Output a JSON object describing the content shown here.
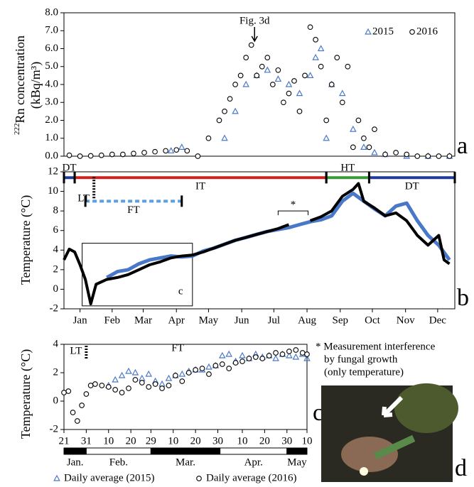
{
  "chart_data": [
    {
      "type": "scatter",
      "y_label_sup": "222",
      "y_label": "Rn concentration",
      "y_label_unit": "(kBq/m³)",
      "xlim": [
        0,
        365
      ],
      "ylim": [
        0,
        8
      ],
      "yticks": [
        {
          "value": 0,
          "label": "0.0"
        },
        {
          "value": 1,
          "label": "1.0"
        },
        {
          "value": 2,
          "label": "2.0"
        },
        {
          "value": 3,
          "label": "3.0"
        },
        {
          "value": 4,
          "label": "4.0"
        },
        {
          "value": 5,
          "label": "5.0"
        },
        {
          "value": 6,
          "label": "6.0"
        },
        {
          "value": 7,
          "label": "7.0"
        },
        {
          "value": 8,
          "label": "8.0"
        }
      ],
      "legend": "upper right",
      "series": [
        {
          "name": "2015",
          "color": "#4a78c8",
          "marker": "triangle",
          "x": [
            100,
            110,
            150,
            160,
            170,
            180,
            190,
            200,
            210,
            220,
            230,
            235,
            240,
            245,
            250,
            260,
            270,
            280,
            290,
            300,
            320,
            340,
            360
          ],
          "values": [
            0.3,
            0.5,
            1.0,
            2.5,
            4.0,
            4.5,
            4.8,
            4.3,
            4.0,
            3.5,
            4.5,
            5.5,
            6.0,
            1.0,
            4.0,
            3.5,
            1.5,
            0.5,
            0.2,
            0.1,
            0.0,
            0.0,
            0.0
          ]
        },
        {
          "name": "2016",
          "color": "#000000",
          "marker": "circle",
          "x": [
            5,
            15,
            25,
            35,
            45,
            55,
            65,
            75,
            85,
            95,
            105,
            115,
            125,
            135,
            145,
            150,
            155,
            160,
            165,
            170,
            175,
            180,
            185,
            190,
            195,
            200,
            205,
            210,
            215,
            220,
            225,
            230,
            235,
            240,
            245,
            250,
            255,
            260,
            265,
            270,
            275,
            280,
            285,
            290,
            300,
            310,
            320,
            330,
            340,
            350,
            360
          ],
          "values": [
            0.05,
            0.0,
            0.02,
            0.05,
            0.1,
            0.1,
            0.15,
            0.2,
            0.25,
            0.3,
            0.35,
            0.3,
            0.0,
            1.0,
            2.0,
            2.5,
            3.2,
            4.0,
            4.5,
            5.5,
            6.2,
            4.5,
            5.0,
            5.5,
            4.0,
            4.8,
            3.0,
            3.5,
            4.2,
            2.5,
            4.5,
            7.2,
            6.5,
            5.0,
            2.0,
            4.0,
            5.5,
            3.0,
            5.0,
            0.5,
            2.0,
            1.0,
            0.5,
            1.5,
            0.1,
            0.2,
            0.1,
            0.0,
            0.0,
            0.0,
            0.0
          ]
        }
      ],
      "annotations": [
        {
          "text": "Fig. 3d",
          "x": 178
        }
      ]
    },
    {
      "type": "line",
      "y_label": "Temperature (°C)",
      "xlim": [
        0,
        365
      ],
      "ylim": [
        -2,
        12
      ],
      "yticks": [
        -2,
        0,
        2,
        4,
        6,
        8,
        10,
        12
      ],
      "xticks": [
        {
          "value": 15,
          "label": "Jan"
        },
        {
          "value": 45,
          "label": "Feb"
        },
        {
          "value": 74,
          "label": "Mar"
        },
        {
          "value": 105,
          "label": "Apr"
        },
        {
          "value": 135,
          "label": "May"
        },
        {
          "value": 166,
          "label": "Jun"
        },
        {
          "value": 196,
          "label": "Jul"
        },
        {
          "value": 227,
          "label": "Aug"
        },
        {
          "value": 258,
          "label": "Sep"
        },
        {
          "value": 288,
          "label": "Oct"
        },
        {
          "value": 319,
          "label": "Nov"
        },
        {
          "value": 349,
          "label": "Dec"
        }
      ],
      "series": [
        {
          "name": "2015",
          "color": "#4a78c8",
          "x": [
            40,
            50,
            60,
            70,
            80,
            90,
            100,
            110,
            120,
            130,
            140,
            150,
            160,
            170,
            180,
            190,
            200,
            210,
            220,
            230,
            240,
            250,
            260,
            270,
            280,
            290,
            300,
            310,
            320,
            330,
            340,
            350,
            360
          ],
          "values": [
            1.2,
            1.8,
            2.0,
            2.6,
            3.0,
            3.2,
            3.4,
            3.3,
            3.4,
            3.9,
            4.2,
            4.6,
            5.0,
            5.3,
            5.6,
            5.9,
            6.1,
            6.3,
            6.6,
            6.9,
            7.1,
            7.5,
            9.0,
            9.8,
            9.0,
            8.2,
            7.5,
            8.5,
            8.8,
            7.0,
            5.5,
            4.5,
            3.0
          ]
        },
        {
          "name": "2016",
          "color": "#000000",
          "x": [
            0,
            5,
            10,
            15,
            20,
            25,
            30,
            40,
            50,
            60,
            70,
            80,
            90,
            100,
            110,
            120,
            130,
            140,
            150,
            160,
            170,
            180,
            190,
            200,
            210,
            220,
            230,
            240,
            250,
            260,
            270,
            275,
            280,
            290,
            300,
            310,
            320,
            330,
            340,
            350,
            355,
            360
          ],
          "values": [
            3.0,
            4.1,
            3.8,
            2.5,
            1.0,
            -1.5,
            0.5,
            1.0,
            1.2,
            1.5,
            2.0,
            2.5,
            2.8,
            3.2,
            3.4,
            3.5,
            3.8,
            4.2,
            4.6,
            5.0,
            5.3,
            5.6,
            5.9,
            6.2,
            6.6,
            null,
            7.0,
            7.4,
            8.0,
            9.5,
            10.2,
            10.8,
            9.0,
            8.3,
            7.5,
            7.8,
            7.0,
            5.5,
            4.5,
            5.5,
            3.0,
            2.6
          ]
        }
      ],
      "phases": [
        {
          "label": "DT",
          "start": 0,
          "end": 10,
          "level": 11.4,
          "color": "#1f3a9a",
          "dashed": false
        },
        {
          "label": "IT",
          "start": 10,
          "end": 245,
          "level": 11.4,
          "color": "#cc2222",
          "dashed": false
        },
        {
          "label": "HT",
          "start": 245,
          "end": 285,
          "level": 11.4,
          "color": "#3a9a3a",
          "dashed": false
        },
        {
          "label": "DT",
          "start": 285,
          "end": 365,
          "level": 11.4,
          "color": "#1f3a9a",
          "dashed": false
        },
        {
          "label": "FT",
          "start": 20,
          "end": 110,
          "level": 9.0,
          "color": "#5aa0e0",
          "dashed": true
        }
      ],
      "markers": [
        {
          "label": "LT",
          "x": 28,
          "y": [
            9.3,
            11.5
          ]
        }
      ],
      "bracket": {
        "label": "*",
        "start": 200,
        "end": 228,
        "level": 8.0
      },
      "inset_box": {
        "label": "c",
        "x": [
          17,
          120
        ],
        "y": [
          -1.7,
          4.7
        ]
      }
    },
    {
      "type": "scatter",
      "y_label": "Temperature (°C)",
      "xlim": [
        21,
        130
      ],
      "ylim": [
        -2,
        4
      ],
      "yticks": [
        -2,
        0,
        2,
        4
      ],
      "xticks": [
        21,
        31,
        {
          "value": 41,
          "label": "10"
        },
        {
          "value": 51,
          "label": "20"
        },
        {
          "value": 60,
          "label": "29"
        },
        {
          "value": 70,
          "label": "10"
        },
        {
          "value": 80,
          "label": "20"
        },
        {
          "value": 90,
          "label": "30"
        },
        {
          "value": 101,
          "label": "10"
        },
        {
          "value": 111,
          "label": "20"
        },
        {
          "value": 121,
          "label": "30"
        },
        {
          "value": 130,
          "label": "10"
        }
      ],
      "month_bands": [
        {
          "label": "Jan.",
          "start": 21,
          "end": 31,
          "fill": "#000000"
        },
        {
          "label": "Feb.",
          "start": 31,
          "end": 60,
          "fill": "#ffffff"
        },
        {
          "label": "Mar.",
          "start": 60,
          "end": 91,
          "fill": "#000000"
        },
        {
          "label": "Apr.",
          "start": 91,
          "end": 121,
          "fill": "#ffffff"
        },
        {
          "label": "May",
          "start": 121,
          "end": 130,
          "fill": "#000000"
        }
      ],
      "legend": "below",
      "series": [
        {
          "name": "Daily average (2015)",
          "color": "#4a78c8",
          "marker": "triangle",
          "x": [
            41,
            44,
            47,
            50,
            53,
            56,
            59,
            62,
            65,
            68,
            71,
            74,
            77,
            80,
            83,
            86,
            89,
            92,
            95,
            98,
            101,
            104,
            107,
            110,
            113,
            116,
            119,
            122,
            125,
            128,
            130
          ],
          "values": [
            1.1,
            1.5,
            1.8,
            2.1,
            2.0,
            1.6,
            1.9,
            1.4,
            1.2,
            1.6,
            1.8,
            1.9,
            2.1,
            2.2,
            2.2,
            2.4,
            2.5,
            3.2,
            3.3,
            2.8,
            3.2,
            3.0,
            3.3,
            3.1,
            3.2,
            3.0,
            3.3,
            3.2,
            3.1,
            3.3,
            3.0
          ]
        },
        {
          "name": "Daily average (2016)",
          "color": "#000000",
          "marker": "circle",
          "x": [
            21,
            23,
            25,
            27,
            29,
            31,
            33,
            35,
            38,
            41,
            44,
            47,
            50,
            53,
            56,
            59,
            62,
            65,
            68,
            71,
            74,
            77,
            80,
            83,
            86,
            89,
            92,
            95,
            98,
            101,
            104,
            107,
            110,
            113,
            116,
            119,
            122,
            125,
            128,
            130
          ],
          "values": [
            0.6,
            0.7,
            -0.8,
            -1.4,
            -0.3,
            0.5,
            1.1,
            1.2,
            1.1,
            1.0,
            0.8,
            0.6,
            0.9,
            1.5,
            1.3,
            1.0,
            1.2,
            0.9,
            1.1,
            1.8,
            1.4,
            2.0,
            2.2,
            2.3,
            1.9,
            2.5,
            2.6,
            2.3,
            2.7,
            2.8,
            3.0,
            3.1,
            3.0,
            3.2,
            3.4,
            3.3,
            3.5,
            3.6,
            3.4,
            3.3
          ]
        }
      ],
      "markers": [
        {
          "label": "LT",
          "x": 31,
          "y": [
            3.0,
            4.0
          ]
        }
      ],
      "annotations": [
        {
          "text": "FT",
          "x": 72,
          "y": 3.7
        }
      ]
    }
  ],
  "panel_labels": [
    "a",
    "b",
    "c",
    "d"
  ],
  "note": [
    "* Measurement interference",
    "by fungal growth",
    "(only temperature)"
  ]
}
